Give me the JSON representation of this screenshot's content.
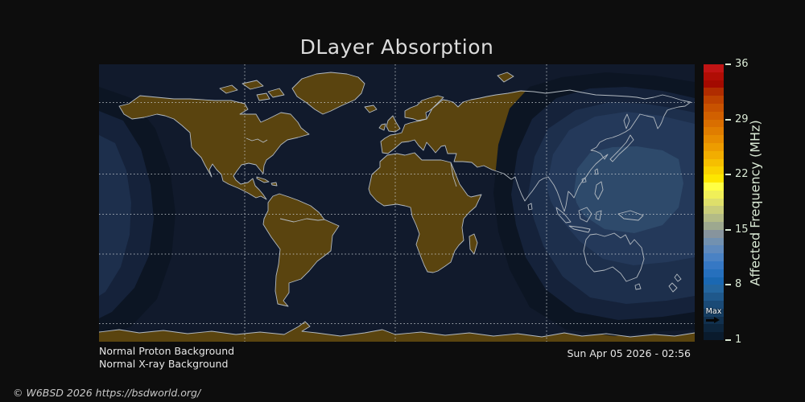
{
  "title": "DLayer Absorption",
  "status": {
    "proton": "Normal Proton Background",
    "xray": "Normal X-ray Background"
  },
  "timestamp": "Sun Apr 05 2026 - 02:56",
  "copyright": "© W6BSD 2026 https://bsdworld.org/",
  "colorbar": {
    "label": "Affected Frequency (MHz)",
    "max_label": "Max",
    "unit": "MHz",
    "range": [
      1,
      36
    ],
    "ticks": [
      {
        "label": "36",
        "pct": 0
      },
      {
        "label": "29",
        "pct": 20
      },
      {
        "label": "22",
        "pct": 40
      },
      {
        "label": "15",
        "pct": 60
      },
      {
        "label": "8",
        "pct": 80
      },
      {
        "label": "1",
        "pct": 100
      }
    ],
    "max_marker_value": 3.5,
    "segments": [
      "#c01414",
      "#b00d05",
      "#a30a00",
      "#b02c00",
      "#bd4200",
      "#c85200",
      "#d16000",
      "#d96e00",
      "#e07d00",
      "#e78c00",
      "#ed9c00",
      "#f2ad00",
      "#f6bf00",
      "#fad200",
      "#fde600",
      "#ffff44",
      "#f0ef58",
      "#dedf6a",
      "#c9cd7a",
      "#b3bb86",
      "#9da88f",
      "#87949d",
      "#7291b0",
      "#5f8abd",
      "#4a82c4",
      "#3678c4",
      "#2670bd",
      "#1a68b2",
      "#24669f",
      "#1f588b",
      "#1a4a76",
      "#153d61",
      "#11304d",
      "#0d253c",
      "#0a1b2d"
    ]
  },
  "map": {
    "projection": "equirectangular",
    "ocean_color": "#111a2c",
    "land_color": "#5a440f",
    "coastline_color": "#b3bac1",
    "gridline_color": "#cdd2d6",
    "absorption_bands": [
      "#0c1523",
      "#15223a",
      "#1d2f4c",
      "#24395a",
      "#2e4a6b"
    ],
    "gridlines": {
      "latitudes": [
        "66.5N",
        "23.5N",
        "0",
        "23.5S",
        "66.5S"
      ],
      "longitudes": [
        "90W",
        "0",
        "90E"
      ]
    }
  }
}
